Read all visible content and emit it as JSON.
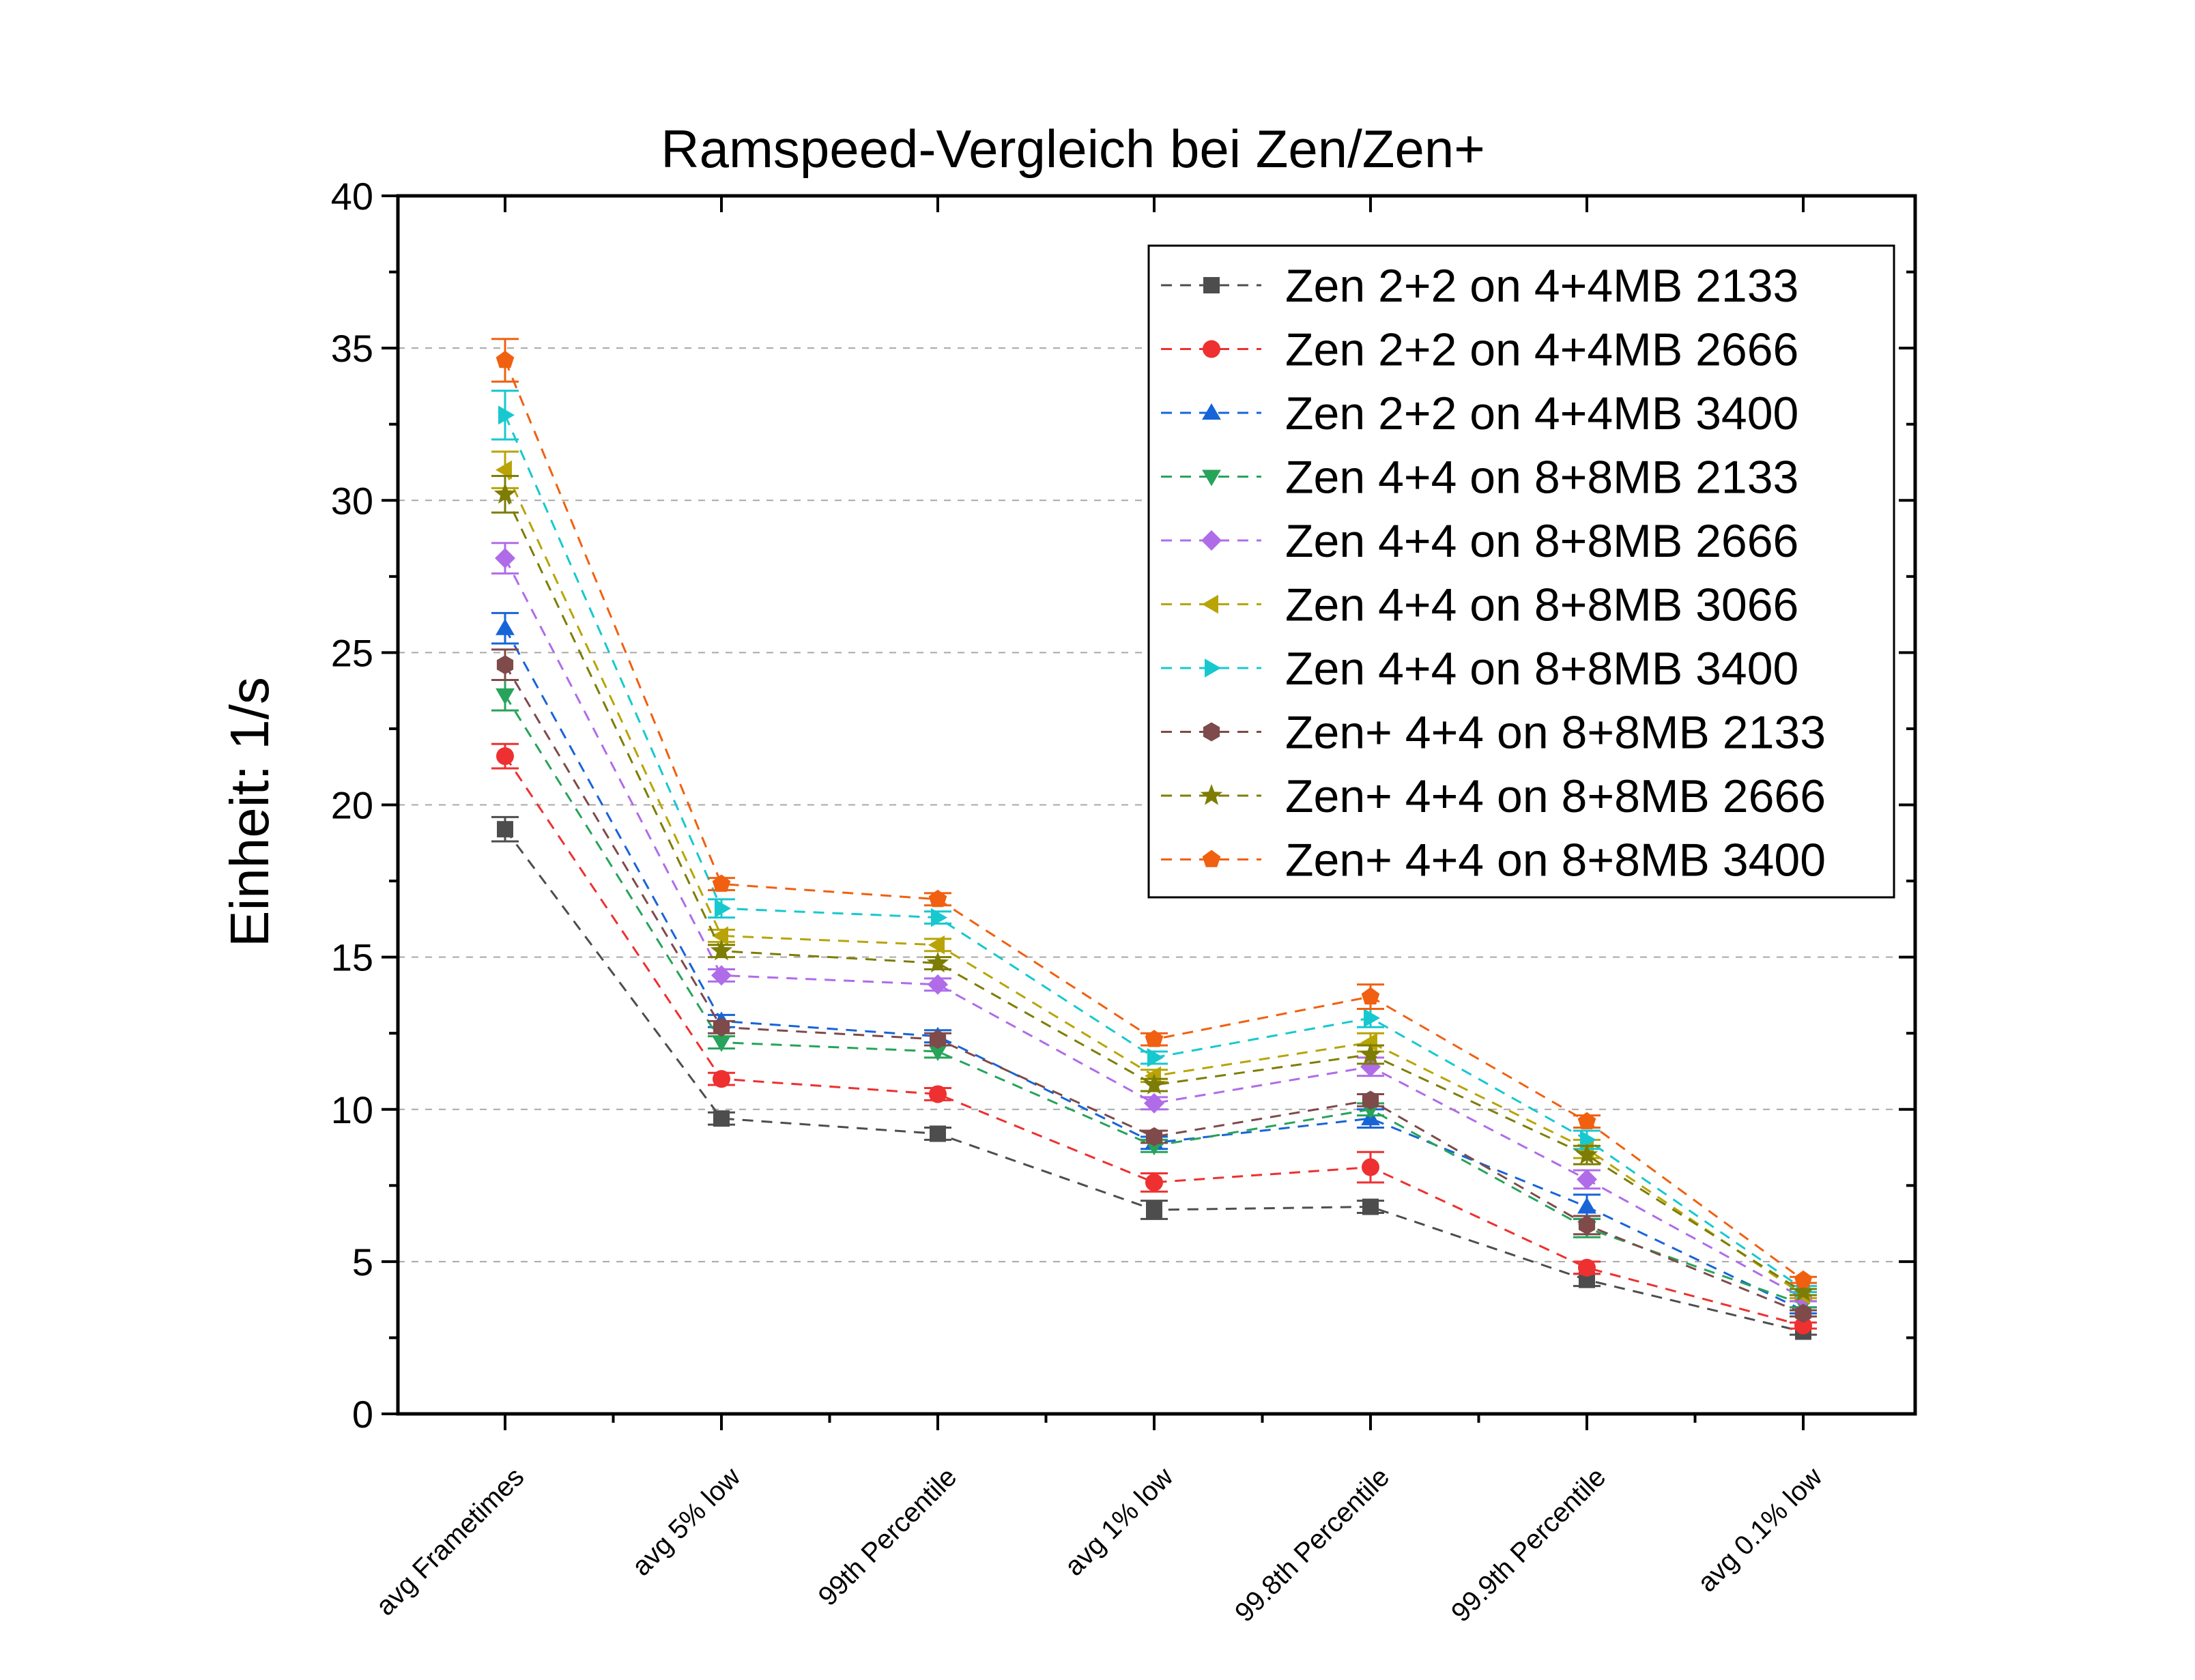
{
  "chart_data": {
    "type": "line",
    "title": "Ramspeed-Vergleich bei Zen/Zen+",
    "xlabel": "",
    "ylabel": "Einheit: 1/s",
    "ylim": [
      0,
      40
    ],
    "yticks": [
      0,
      5,
      10,
      15,
      20,
      25,
      30,
      35,
      40
    ],
    "grid": "horizontal dashed at major y ticks",
    "legend_position": "top-right",
    "categories": [
      "avg Frametimes",
      "avg 5% low",
      "99th Percentile",
      "avg 1% low",
      "99.8th Percentile",
      "99.9th Percentile",
      "avg 0.1% low"
    ],
    "series": [
      {
        "name": "Zen 2+2 on 4+4MB 2133",
        "color": "#4d4d4d",
        "marker": "square",
        "values": [
          19.2,
          9.7,
          9.2,
          6.7,
          6.8,
          4.4,
          2.7
        ],
        "errors": [
          0.4,
          0.2,
          0.2,
          0.3,
          0.2,
          0.2,
          0.1
        ]
      },
      {
        "name": "Zen 2+2 on 4+4MB 2666",
        "color": "#ee3030",
        "marker": "circle",
        "values": [
          21.6,
          11.0,
          10.5,
          7.6,
          8.1,
          4.8,
          2.9
        ],
        "errors": [
          0.4,
          0.2,
          0.2,
          0.3,
          0.5,
          0.2,
          0.1
        ]
      },
      {
        "name": "Zen 2+2 on 4+4MB 3400",
        "color": "#1764d8",
        "marker": "triangle-up",
        "values": [
          25.8,
          12.9,
          12.4,
          8.9,
          9.7,
          6.8,
          3.4
        ],
        "errors": [
          0.5,
          0.2,
          0.2,
          0.2,
          0.3,
          0.4,
          0.1
        ]
      },
      {
        "name": "Zen 4+4 on 8+8MB 2133",
        "color": "#27a35a",
        "marker": "triangle-down",
        "values": [
          23.6,
          12.2,
          11.9,
          8.8,
          10.0,
          6.1,
          3.6
        ],
        "errors": [
          0.5,
          0.2,
          0.2,
          0.2,
          0.2,
          0.3,
          0.1
        ]
      },
      {
        "name": "Zen 4+4 on 8+8MB 2666",
        "color": "#b06ce8",
        "marker": "diamond",
        "values": [
          28.1,
          14.4,
          14.1,
          10.2,
          11.4,
          7.7,
          3.8
        ],
        "errors": [
          0.5,
          0.2,
          0.2,
          0.2,
          0.3,
          0.3,
          0.1
        ]
      },
      {
        "name": "Zen 4+4 on 8+8MB 3066",
        "color": "#b8a406",
        "marker": "triangle-left",
        "values": [
          31.0,
          15.7,
          15.4,
          11.1,
          12.2,
          8.7,
          3.9
        ],
        "errors": [
          0.6,
          0.2,
          0.2,
          0.2,
          0.3,
          0.3,
          0.1
        ]
      },
      {
        "name": "Zen 4+4 on 8+8MB 3400",
        "color": "#17c8cf",
        "marker": "triangle-right",
        "values": [
          32.8,
          16.6,
          16.3,
          11.7,
          13.0,
          9.0,
          4.1
        ],
        "errors": [
          0.8,
          0.3,
          0.2,
          0.2,
          0.3,
          0.3,
          0.1
        ]
      },
      {
        "name": "Zen+ 4+4 on 8+8MB 2133",
        "color": "#7e4a4a",
        "marker": "hexagon",
        "values": [
          24.6,
          12.7,
          12.3,
          9.1,
          10.3,
          6.2,
          3.3
        ],
        "errors": [
          0.5,
          0.2,
          0.2,
          0.2,
          0.2,
          0.3,
          0.1
        ]
      },
      {
        "name": "Zen+ 4+4 on 8+8MB 2666",
        "color": "#7d7d05",
        "marker": "star",
        "values": [
          30.2,
          15.2,
          14.8,
          10.8,
          11.8,
          8.5,
          4.0
        ],
        "errors": [
          0.6,
          0.2,
          0.2,
          0.2,
          0.3,
          0.3,
          0.1
        ]
      },
      {
        "name": "Zen+ 4+4 on 8+8MB 3400",
        "color": "#f06010",
        "marker": "pentagon",
        "values": [
          34.6,
          17.4,
          16.9,
          12.3,
          13.7,
          9.6,
          4.4
        ],
        "errors": [
          0.7,
          0.2,
          0.2,
          0.2,
          0.4,
          0.2,
          0.1
        ]
      }
    ]
  }
}
